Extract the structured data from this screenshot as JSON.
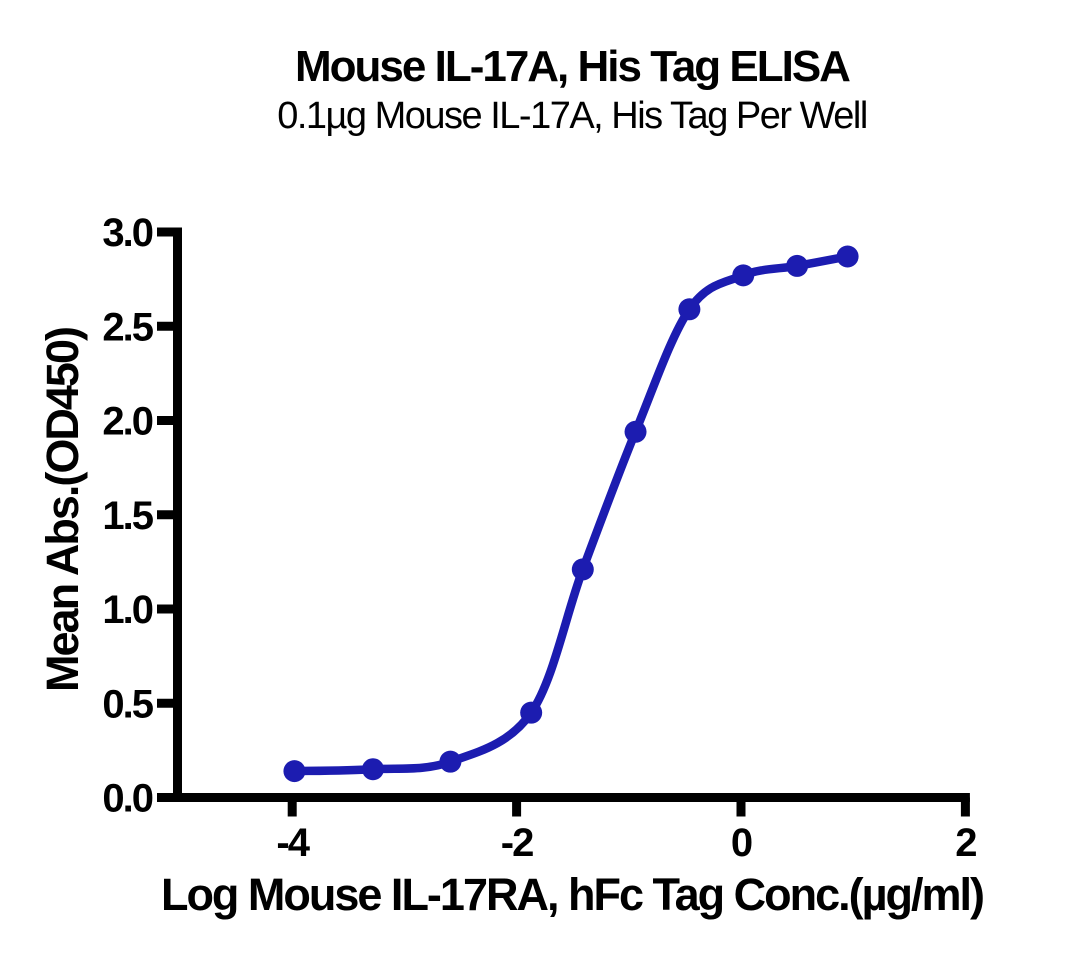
{
  "chart_data": {
    "type": "scatter",
    "curve": "4PL sigmoidal fit",
    "title": "Mouse IL-17A, His Tag ELISA",
    "subtitle": "0.1µg Mouse IL-17A, His Tag Per Well",
    "xlabel": "Log Mouse IL-17RA, hFc Tag Conc.(µg/ml)",
    "ylabel": "Mean Abs.(OD450)",
    "x": [
      -3.98,
      -3.28,
      -2.59,
      -1.87,
      -1.41,
      -0.94,
      -0.46,
      0.02,
      0.5,
      0.95
    ],
    "series": [
      {
        "name": "Mean Abs.(OD450)",
        "values": [
          0.14,
          0.15,
          0.19,
          0.45,
          1.21,
          1.94,
          2.59,
          2.77,
          2.82,
          2.87
        ]
      }
    ],
    "x_ticks": [
      -4,
      -2,
      0,
      2
    ],
    "y_ticks": [
      0.0,
      0.5,
      1.0,
      1.5,
      2.0,
      2.5,
      3.0
    ],
    "xlim": [
      -5.0,
      2
    ],
    "ylim": [
      0,
      3
    ],
    "grid": false,
    "legend": "none",
    "marker_color": "#1c1cb0",
    "line_color": "#1c1cb0",
    "axis_color": "#000000",
    "background_color": "#ffffff"
  }
}
